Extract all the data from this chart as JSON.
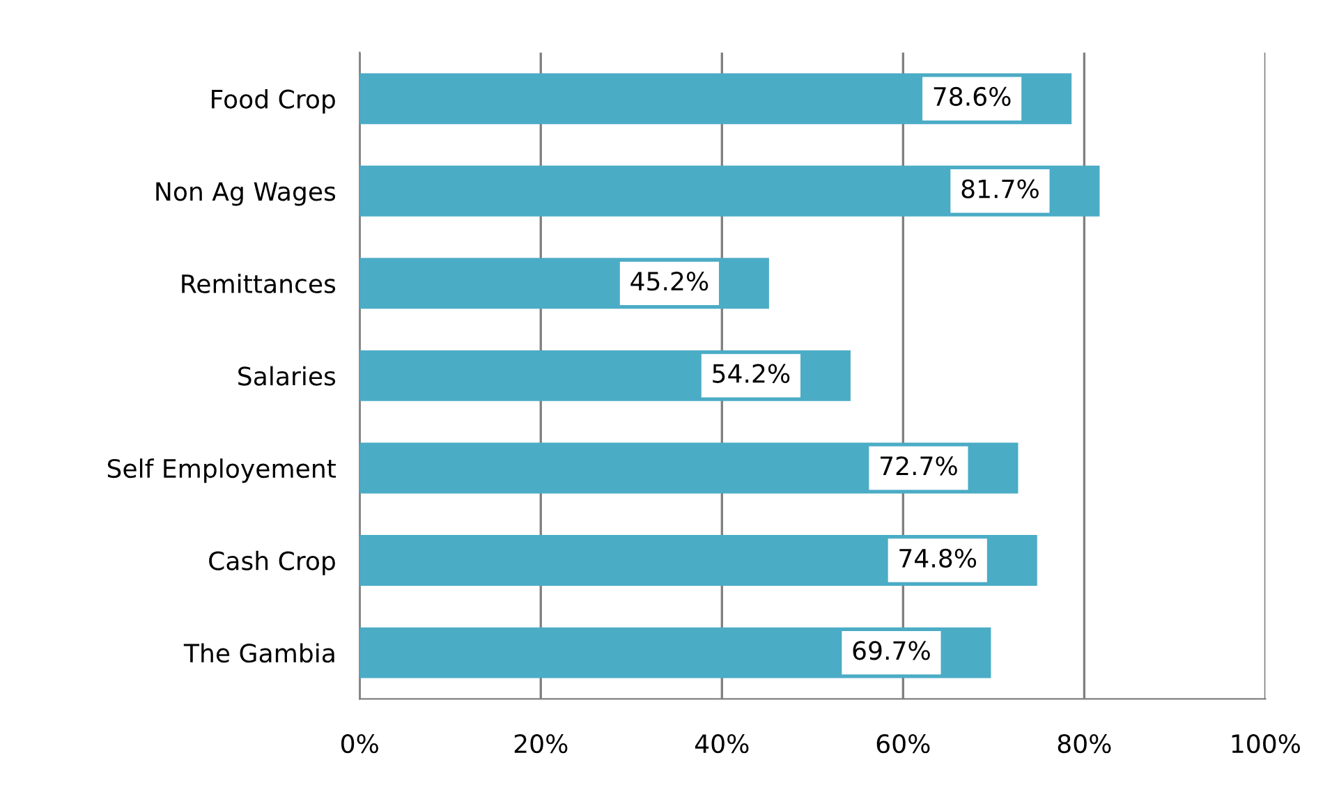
{
  "chart_data": {
    "type": "bar",
    "orientation": "horizontal",
    "categories": [
      "Food Crop",
      "Non Ag Wages",
      "Remittances",
      "Salaries",
      "Self Employement",
      "Cash Crop",
      "The Gambia"
    ],
    "values": [
      78.6,
      81.7,
      45.2,
      54.2,
      72.7,
      74.8,
      69.7
    ],
    "value_labels": [
      "78.6%",
      "81.7%",
      "45.2%",
      "54.2%",
      "72.7%",
      "74.8%",
      "69.7%"
    ],
    "color": "#4bacc6",
    "xlim": [
      0,
      100
    ],
    "xticks": [
      {
        "value": 0,
        "label": "0%"
      },
      {
        "value": 20,
        "label": "20%"
      },
      {
        "value": 40,
        "label": "40%"
      },
      {
        "value": 60,
        "label": "60%"
      },
      {
        "value": 80,
        "label": "80%"
      },
      {
        "value": 100,
        "label": "100%"
      }
    ],
    "grid": "x"
  }
}
